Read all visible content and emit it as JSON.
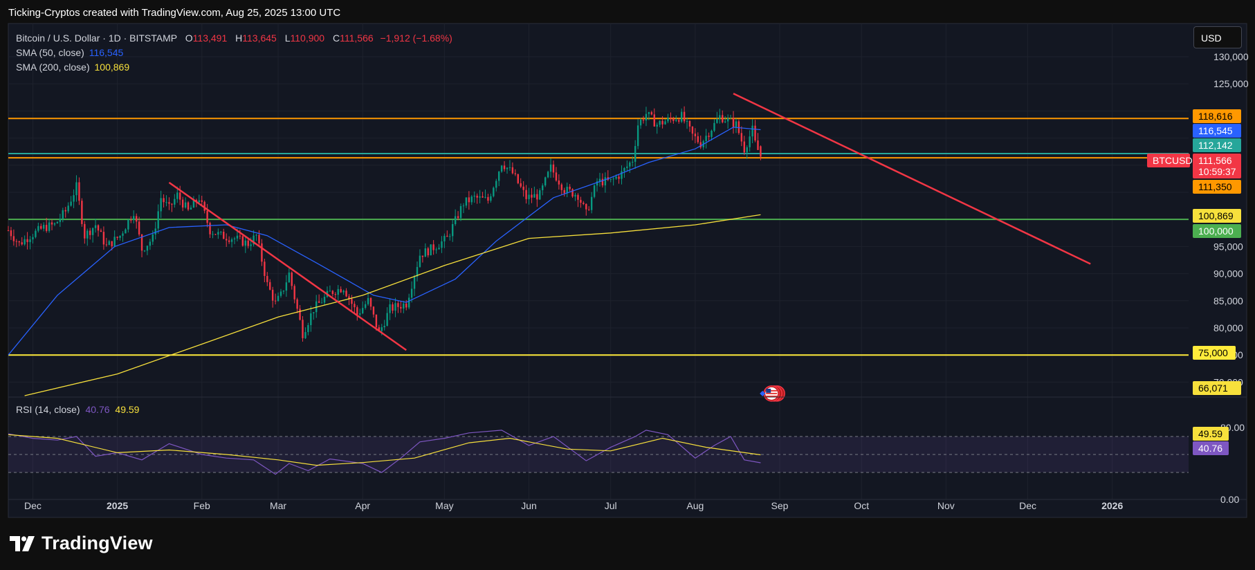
{
  "header": {
    "credit": "Ticking-Cryptos created with TradingView.com, Aug 25, 2025 13:00 UTC"
  },
  "legend": {
    "symbol": "Bitcoin / U.S. Dollar · 1D · BITSTAMP",
    "open_key": "O",
    "open": "113,491",
    "high_key": "H",
    "high": "113,645",
    "low_key": "L",
    "low": "110,900",
    "close_key": "C",
    "close": "111,566",
    "change": "−1,912 (−1.68%)",
    "sma50_label": "SMA (50, close)",
    "sma50_value": "116,545",
    "sma200_label": "SMA (200, close)",
    "sma200_value": "100,869",
    "rsi_label": "RSI (14, close)",
    "rsi_value": "40.76",
    "rsi_ma_value": "49.59"
  },
  "toolbar": {
    "currency": "USD"
  },
  "footer": {
    "brand": "TradingView"
  },
  "colors": {
    "background": "#131722",
    "outer": "#0f0f0f",
    "grid": "#1e222d",
    "up": "#089981",
    "down": "#f23645",
    "sma50": "#2962ff",
    "sma200": "#f7e03c",
    "rsi": "#7e57c2",
    "resistance_orange": "#ff9800",
    "support_teal": "#26a69a",
    "support_green": "#4caf50",
    "support_yellow": "#ffeb3b",
    "trendline_red": "#f23645"
  },
  "chart_data": [
    {
      "type": "candlestick",
      "symbol": "BTCUSD",
      "exchange": "BITSTAMP",
      "interval": "1D",
      "price_unit": "USD",
      "x_ticks": [
        "Dec",
        "2025",
        "Feb",
        "Mar",
        "Apr",
        "May",
        "Jun",
        "Jul",
        "Aug",
        "Sep",
        "Oct",
        "Nov",
        "Dec",
        "2026"
      ],
      "x_tick_dates": [
        "2024-12-01",
        "2025-01-01",
        "2025-02-01",
        "2025-03-01",
        "2025-04-01",
        "2025-05-01",
        "2025-06-01",
        "2025-07-01",
        "2025-08-01",
        "2025-09-01",
        "2025-10-01",
        "2025-11-01",
        "2025-12-01",
        "2026-01-01"
      ],
      "x_range": [
        "2024-11-22",
        "2026-01-29"
      ],
      "y_ticks": [
        70000,
        75000,
        80000,
        85000,
        90000,
        95000,
        100000,
        105000,
        110000,
        115000,
        120000,
        125000,
        130000
      ],
      "y_tick_labels": [
        "70,000",
        "75,000",
        "80,000",
        "85,000",
        "90,000",
        "95,000",
        "",
        "",
        "",
        "",
        "",
        "125,000",
        "130,000"
      ],
      "ylim": [
        67500,
        132800
      ],
      "grid": true,
      "close_path": {
        "dates": [
          "2024-11-22",
          "2024-11-26",
          "2024-11-30",
          "2024-12-05",
          "2024-12-09",
          "2024-12-13",
          "2024-12-17",
          "2024-12-20",
          "2024-12-24",
          "2024-12-28",
          "2025-01-02",
          "2025-01-07",
          "2025-01-10",
          "2025-01-14",
          "2025-01-17",
          "2025-01-20",
          "2025-01-23",
          "2025-01-27",
          "2025-01-31",
          "2025-02-04",
          "2025-02-08",
          "2025-02-13",
          "2025-02-18",
          "2025-02-21",
          "2025-02-25",
          "2025-02-28",
          "2025-03-02",
          "2025-03-05",
          "2025-03-10",
          "2025-03-14",
          "2025-03-20",
          "2025-03-25",
          "2025-03-30",
          "2025-04-03",
          "2025-04-07",
          "2025-04-11",
          "2025-04-17",
          "2025-04-22",
          "2025-04-26",
          "2025-05-02",
          "2025-05-08",
          "2025-05-12",
          "2025-05-17",
          "2025-05-22",
          "2025-05-26",
          "2025-05-31",
          "2025-06-05",
          "2025-06-09",
          "2025-06-14",
          "2025-06-19",
          "2025-06-22",
          "2025-06-26",
          "2025-07-01",
          "2025-07-05",
          "2025-07-09",
          "2025-07-11",
          "2025-07-14",
          "2025-07-18",
          "2025-07-23",
          "2025-07-27",
          "2025-07-31",
          "2025-08-03",
          "2025-08-08",
          "2025-08-10",
          "2025-08-14",
          "2025-08-16",
          "2025-08-19",
          "2025-08-22",
          "2025-08-23",
          "2025-08-25"
        ],
        "close": [
          98000,
          95500,
          97000,
          98500,
          99000,
          101500,
          106000,
          97000,
          99000,
          95000,
          97000,
          101500,
          94500,
          96500,
          104000,
          102000,
          104500,
          101500,
          104000,
          98000,
          97000,
          96500,
          95500,
          97000,
          88000,
          84500,
          86000,
          90000,
          79000,
          83500,
          86500,
          87500,
          82500,
          85000,
          79000,
          83500,
          84500,
          93500,
          94500,
          96500,
          103000,
          104000,
          103500,
          110500,
          108500,
          104000,
          104500,
          109500,
          105500,
          104500,
          101000,
          107000,
          107000,
          108500,
          111000,
          117500,
          119500,
          117500,
          118500,
          119000,
          115500,
          114000,
          117500,
          119000,
          118000,
          117500,
          113000,
          116500,
          114000,
          111566
        ]
      },
      "last_candle": {
        "open": 113491,
        "high": 113645,
        "low": 110900,
        "close": 111566
      },
      "price_labels": [
        {
          "text": "118,616",
          "value": 118616,
          "color": "#ff9800"
        },
        {
          "text": "116,545",
          "value": 116545,
          "color": "#2962ff"
        },
        {
          "text": "112,142",
          "value": 112142,
          "color": "#26a69a"
        },
        {
          "text": "BTCUSD",
          "value": 111566,
          "color": "#f23645"
        },
        {
          "text": "111,566",
          "value": 111566,
          "color": "#f23645"
        },
        {
          "text": "10:59:37",
          "value": 111566,
          "color": "#f23645"
        },
        {
          "text": "111,350",
          "value": 111350,
          "color": "#ff9800"
        },
        {
          "text": "100,869",
          "value": 100869,
          "color": "#f7e03c"
        },
        {
          "text": "100,000",
          "value": 100000,
          "color": "#4caf50"
        },
        {
          "text": "75,000",
          "value": 75000,
          "color": "#ffeb3b"
        },
        {
          "text": "66,071",
          "value": 66071,
          "color": "#f7e03c"
        }
      ],
      "horizontal_levels": [
        {
          "value": 118616,
          "color": "#ff9800"
        },
        {
          "value": 112142,
          "color": "#26a69a"
        },
        {
          "value": 111350,
          "color": "#ff9800"
        },
        {
          "value": 100000,
          "color": "#4caf50"
        },
        {
          "value": 75000,
          "color": "#ffeb3b"
        }
      ],
      "trendlines": [
        {
          "color": "#f23645",
          "from": {
            "date": "2025-01-20",
            "price": 106800
          },
          "to": {
            "date": "2025-04-17",
            "price": 75900
          }
        },
        {
          "color": "#f23645",
          "from": {
            "date": "2025-08-15",
            "price": 123200
          },
          "to": {
            "date": "2025-12-24",
            "price": 91800
          }
        }
      ],
      "sma50": {
        "name": "SMA (50, close)",
        "dates": [
          "2024-11-22",
          "2024-12-10",
          "2024-12-31",
          "2025-01-20",
          "2025-02-10",
          "2025-02-25",
          "2025-03-15",
          "2025-04-05",
          "2025-04-17",
          "2025-05-05",
          "2025-05-20",
          "2025-06-10",
          "2025-06-30",
          "2025-07-15",
          "2025-08-01",
          "2025-08-15",
          "2025-08-25"
        ],
        "values": [
          75000,
          86000,
          95000,
          98500,
          99000,
          97000,
          92000,
          86000,
          84700,
          89000,
          96000,
          104000,
          107500,
          110500,
          113000,
          117000,
          116545
        ]
      },
      "sma200": {
        "name": "SMA (200, close)",
        "dates": [
          "2024-11-28",
          "2025-01-01",
          "2025-02-01",
          "2025-03-01",
          "2025-04-01",
          "2025-05-01",
          "2025-06-01",
          "2025-07-01",
          "2025-08-01",
          "2025-08-25"
        ],
        "values": [
          67500,
          71500,
          77000,
          82000,
          86000,
          91500,
          96500,
          97500,
          99000,
          100869
        ]
      },
      "events": [
        {
          "date": "2025-08-29",
          "price": 67900,
          "icon": "us-flag-icon"
        }
      ]
    },
    {
      "type": "line",
      "indicator": "RSI (14, close)",
      "ylim": [
        0,
        100
      ],
      "y_ticks": [
        0,
        80
      ],
      "y_tick_labels": [
        "0.00",
        "80.00"
      ],
      "band": [
        30,
        70
      ],
      "midline": 50,
      "last_values": [
        {
          "text": "49.59",
          "value": 49.59,
          "color": "#f7e03c"
        },
        {
          "text": "40.76",
          "value": 40.76,
          "color": "#7e57c2"
        }
      ],
      "rsi": {
        "dates": [
          "2024-11-22",
          "2024-12-01",
          "2024-12-10",
          "2024-12-17",
          "2024-12-24",
          "2025-01-01",
          "2025-01-10",
          "2025-01-20",
          "2025-02-01",
          "2025-02-10",
          "2025-02-20",
          "2025-02-28",
          "2025-03-05",
          "2025-03-12",
          "2025-03-20",
          "2025-04-01",
          "2025-04-08",
          "2025-04-15",
          "2025-04-22",
          "2025-05-01",
          "2025-05-10",
          "2025-05-22",
          "2025-06-01",
          "2025-06-10",
          "2025-06-22",
          "2025-07-01",
          "2025-07-10",
          "2025-07-14",
          "2025-07-22",
          "2025-08-01",
          "2025-08-08",
          "2025-08-14",
          "2025-08-19",
          "2025-08-25"
        ],
        "values": [
          73,
          68,
          66,
          70,
          48,
          52,
          44,
          62,
          50,
          46,
          44,
          28,
          40,
          32,
          45,
          40,
          30,
          46,
          64,
          68,
          74,
          77,
          60,
          70,
          43,
          58,
          70,
          77,
          72,
          46,
          60,
          70,
          44,
          40.76
        ]
      },
      "rsi_ma": {
        "dates": [
          "2024-11-22",
          "2024-12-10",
          "2025-01-01",
          "2025-01-20",
          "2025-02-10",
          "2025-03-01",
          "2025-03-15",
          "2025-04-01",
          "2025-04-20",
          "2025-05-10",
          "2025-05-25",
          "2025-06-15",
          "2025-07-01",
          "2025-07-20",
          "2025-08-05",
          "2025-08-25"
        ],
        "values": [
          72,
          68,
          52,
          55,
          50,
          44,
          38,
          41,
          46,
          63,
          68,
          56,
          54,
          68,
          58,
          49.59
        ]
      }
    }
  ]
}
